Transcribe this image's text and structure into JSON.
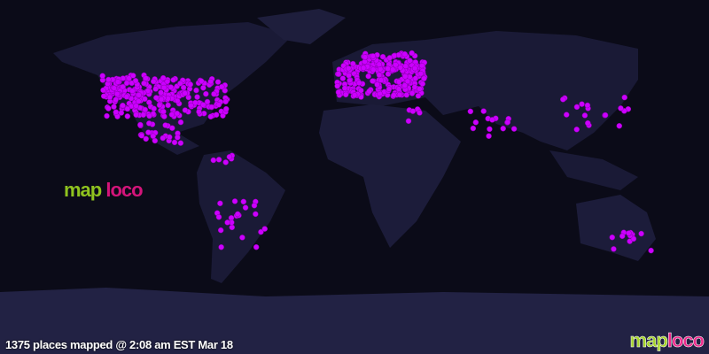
{
  "status_text": "1375 places mapped @ 2:08 am EST Mar 18",
  "logo": {
    "part1": "map",
    "part2": "loco"
  },
  "colors": {
    "ocean": "#0b0b18",
    "land": "#1c1c3a",
    "antarctica": "#222244",
    "marker": "#cc00ff",
    "marker_stroke": "#8800aa",
    "logo_green": "#8fc31f",
    "logo_pink": "#d4147a"
  },
  "map": {
    "projection": "equirectangular",
    "theme": "night lights",
    "marker_icon": "dot"
  }
}
